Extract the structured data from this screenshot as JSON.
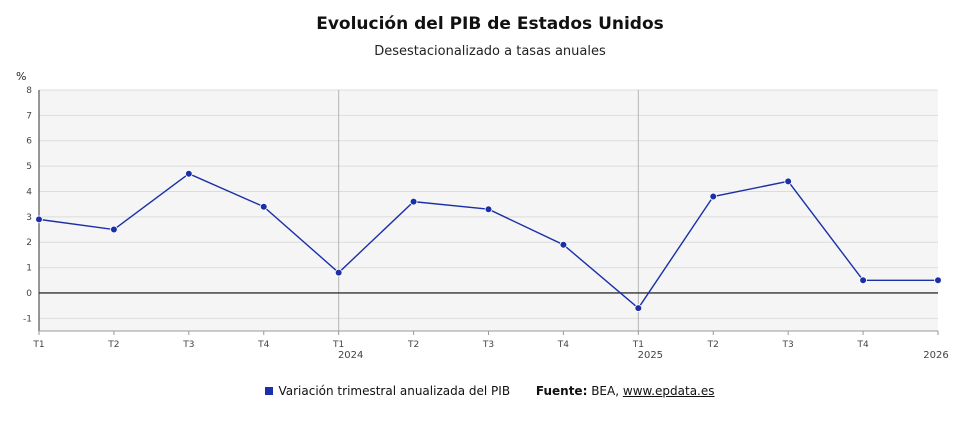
{
  "chart_data": {
    "type": "line",
    "title": "Evolución del PIB de Estados Unidos",
    "subtitle": "Desestacionalizado a tasas anuales",
    "ylabel": "%",
    "ylim": [
      -1.5,
      8
    ],
    "yticks": [
      -1,
      0,
      1,
      2,
      3,
      4,
      5,
      6,
      7,
      8
    ],
    "grid": true,
    "legend_position": "bottom",
    "categories": [
      "T1",
      "T2",
      "T3",
      "T4",
      "T1",
      "T2",
      "T3",
      "T4",
      "T1",
      "T2",
      "T3",
      "T4",
      ""
    ],
    "year_labels": [
      {
        "index": 4,
        "label": "2024"
      },
      {
        "index": 8,
        "label": "2025"
      },
      {
        "index": 12,
        "label": "2026"
      }
    ],
    "year_separators": [
      4,
      8
    ],
    "series": [
      {
        "name": "Variación trimestral anualizada del PIB",
        "color": "#1a2fa8",
        "values": [
          2.9,
          2.5,
          4.7,
          3.4,
          0.8,
          3.6,
          3.3,
          1.9,
          -0.6,
          3.8,
          4.4,
          0.5,
          0.5
        ]
      }
    ]
  },
  "legend": {
    "series_label": "Variación trimestral anualizada del PIB",
    "source_label": "Fuente:",
    "source_text": "BEA,",
    "source_link": "www.epdata.es"
  }
}
